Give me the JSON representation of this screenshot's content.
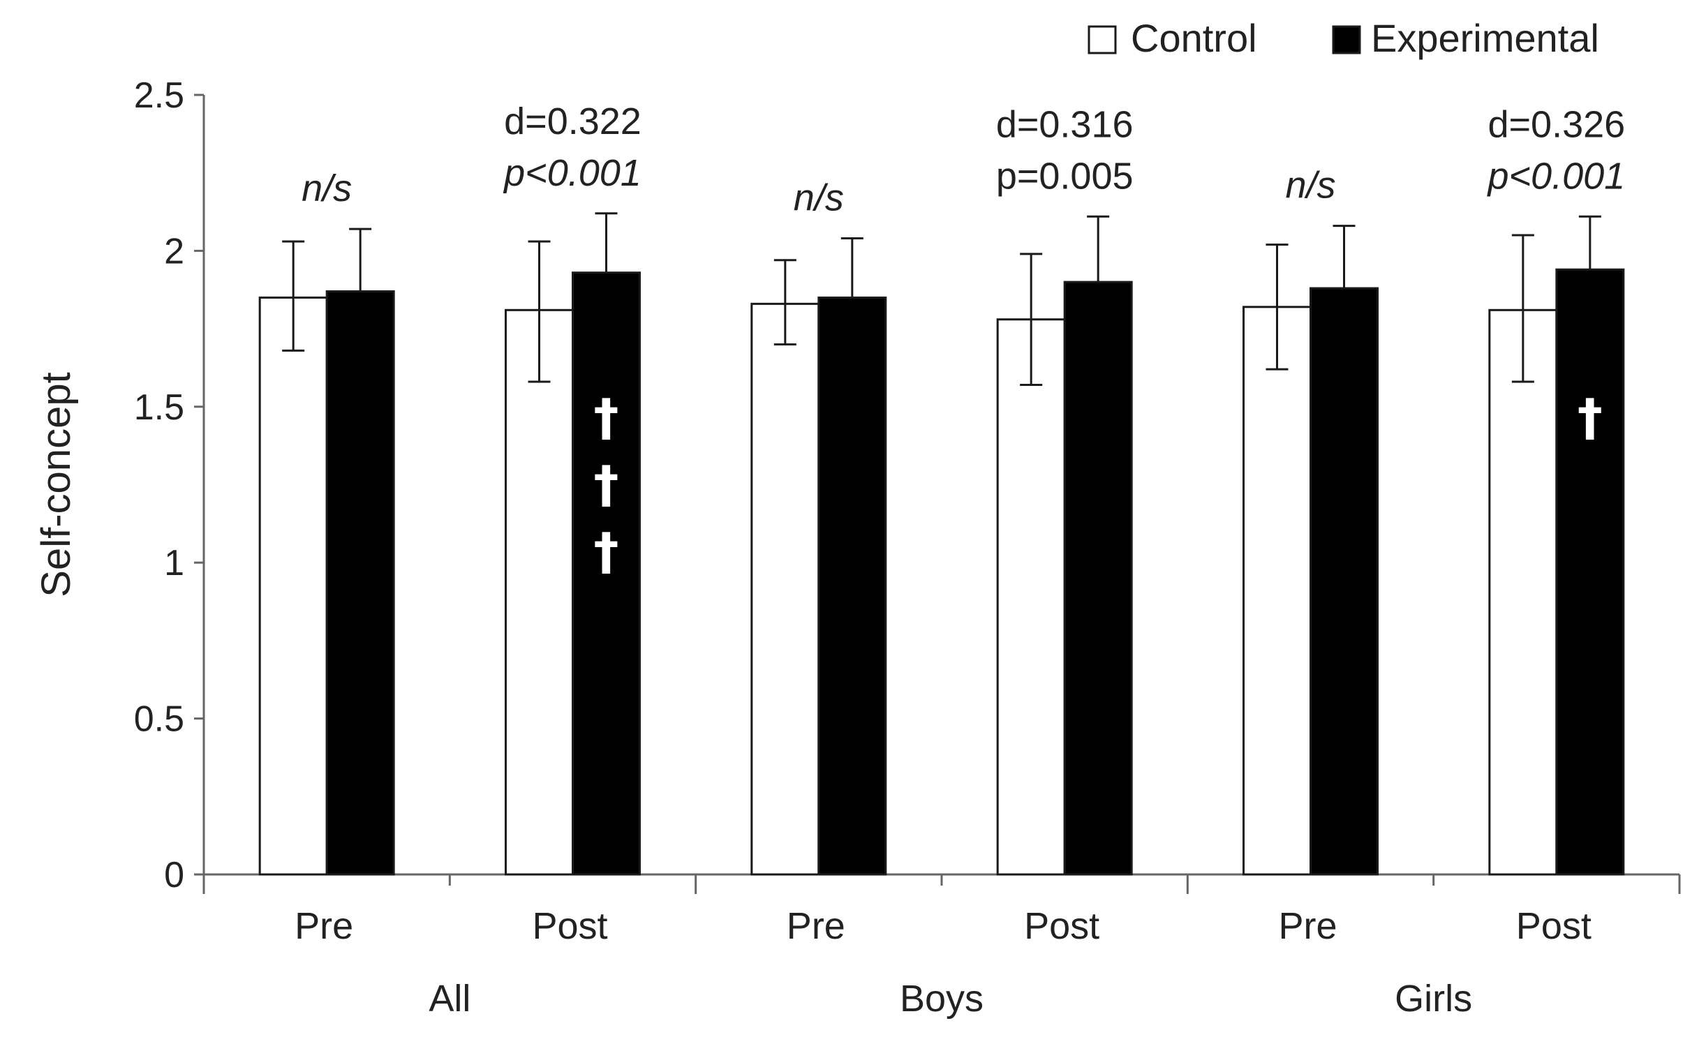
{
  "chart_data": {
    "type": "bar",
    "title": "",
    "xlabel": "",
    "ylabel": "Self-concept",
    "ylim": [
      0,
      2.5
    ],
    "yticks": [
      "0",
      "0.5",
      "1",
      "1.5",
      "2",
      "2.5"
    ],
    "ytick_values": [
      0,
      0.5,
      1,
      1.5,
      2,
      2.5
    ],
    "legend_position": "top-right",
    "groups": [
      {
        "label": "All",
        "subcategories": [
          "Pre",
          "Post"
        ]
      },
      {
        "label": "Boys",
        "subcategories": [
          "Pre",
          "Post"
        ]
      },
      {
        "label": "Girls",
        "subcategories": [
          "Pre",
          "Post"
        ]
      }
    ],
    "categories": [
      "All Pre",
      "All Post",
      "Boys Pre",
      "Boys Post",
      "Girls Pre",
      "Girls Post"
    ],
    "series": [
      {
        "name": "Control",
        "fill": "#ffffff",
        "values": [
          1.85,
          1.81,
          1.83,
          1.78,
          1.82,
          1.81
        ],
        "err_upper": [
          2.03,
          2.03,
          1.97,
          1.99,
          2.02,
          2.05
        ],
        "err_lower": [
          1.68,
          1.58,
          1.7,
          1.57,
          1.62,
          1.58
        ]
      },
      {
        "name": "Experimental",
        "fill": "#000000",
        "values": [
          1.87,
          1.93,
          1.85,
          1.9,
          1.88,
          1.94
        ],
        "err_upper": [
          2.07,
          2.12,
          2.04,
          2.11,
          2.08,
          2.11
        ]
      }
    ],
    "annotations": [
      {
        "category_index": 0,
        "lines": [
          "n/s"
        ],
        "italic": [
          true
        ]
      },
      {
        "category_index": 1,
        "lines": [
          "d=0.322",
          "p<0.001"
        ],
        "italic": [
          false,
          true
        ]
      },
      {
        "category_index": 2,
        "lines": [
          "n/s"
        ],
        "italic": [
          true
        ]
      },
      {
        "category_index": 3,
        "lines": [
          "d=0.316",
          "p=0.005"
        ],
        "italic": [
          false,
          false
        ]
      },
      {
        "category_index": 4,
        "lines": [
          "n/s"
        ],
        "italic": [
          true
        ]
      },
      {
        "category_index": 5,
        "lines": [
          "d=0.326",
          "p<0.001"
        ],
        "italic": [
          false,
          true
        ]
      }
    ],
    "bar_markers": [
      {
        "category_index": 1,
        "series": "Experimental",
        "text": "†",
        "count": 3
      },
      {
        "category_index": 5,
        "series": "Experimental",
        "text": "†",
        "count": 1
      }
    ]
  }
}
